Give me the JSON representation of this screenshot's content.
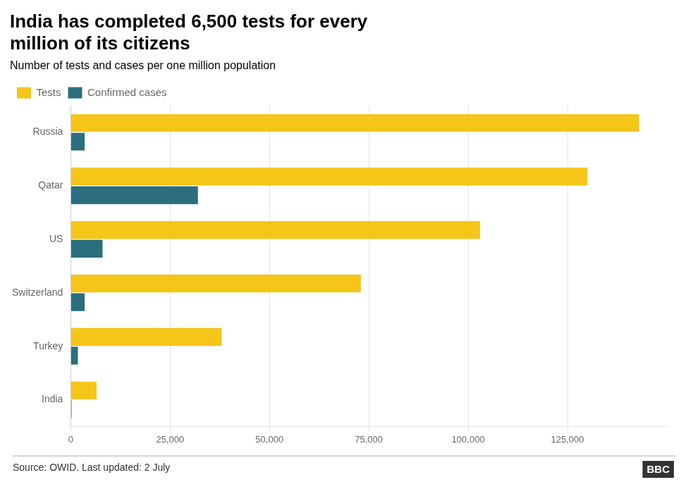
{
  "chart_data": {
    "type": "bar",
    "orientation": "horizontal",
    "title": [
      "India has completed 6,500 tests for every",
      "million of its citizens"
    ],
    "subtitle": "Number of tests and cases per one million population",
    "categories": [
      "Russia",
      "Qatar",
      "US",
      "Switzerland",
      "Turkey",
      "India"
    ],
    "series": [
      {
        "name": "Tests",
        "color": "#F5C518",
        "values": [
          143000,
          130000,
          103000,
          73000,
          38000,
          6500
        ]
      },
      {
        "name": "Confirmed cases",
        "color": "#2B6E7E",
        "values": [
          3500,
          32000,
          8000,
          3500,
          1800,
          200
        ]
      }
    ],
    "xlim": [
      0,
      150000
    ],
    "xticks": [
      0,
      {
        "value": 25000,
        "label": "25,000"
      },
      {
        "value": 50000,
        "label": "50,000"
      },
      {
        "value": 75000,
        "label": "75,000"
      },
      {
        "value": 100000,
        "label": "100,000"
      },
      {
        "value": 125000,
        "label": "125,000"
      }
    ],
    "grid": true,
    "legend": "upper left",
    "annotations": [
      "Source: OWID. Last updated: 2 July",
      "BBC"
    ]
  }
}
